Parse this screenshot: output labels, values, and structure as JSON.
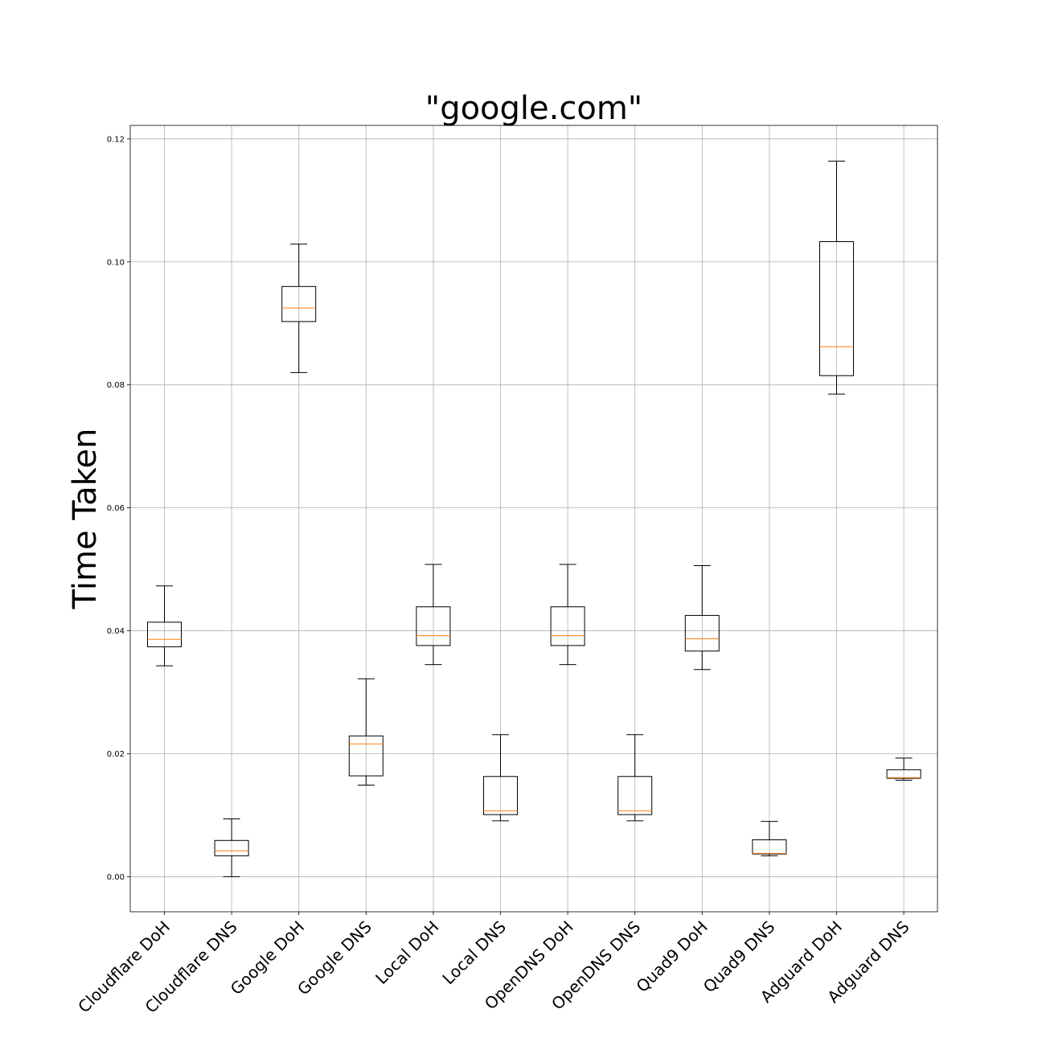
{
  "chart_data": {
    "type": "box",
    "title": "\"google.com\"",
    "xlabel": "",
    "ylabel": "Time Taken",
    "ylim": [
      -0.0057,
      0.1222
    ],
    "yticks": [
      "0.00",
      "0.02",
      "0.04",
      "0.06",
      "0.08",
      "0.10",
      "0.12"
    ],
    "ytick_values": [
      0.0,
      0.02,
      0.04,
      0.06,
      0.08,
      0.1,
      0.12
    ],
    "grid": true,
    "colors": {
      "box": "#000000",
      "median": "#ff7f0e",
      "grid": "#b0b0b0"
    },
    "categories": [
      "Cloudflare DoH",
      "Cloudflare DNS",
      "Google DoH",
      "Google DNS",
      "Local DoH",
      "Local DNS",
      "OpenDNS DoH",
      "OpenDNS DNS",
      "Quad9 DoH",
      "Quad9 DNS",
      "Adguard DoH",
      "Adguard DNS"
    ],
    "boxes": [
      {
        "whisker_low": 0.0343,
        "q1": 0.0374,
        "median": 0.0386,
        "q3": 0.0414,
        "whisker_high": 0.0473
      },
      {
        "whisker_low": 0.0,
        "q1": 0.0034,
        "median": 0.0042,
        "q3": 0.0059,
        "whisker_high": 0.0094
      },
      {
        "whisker_low": 0.082,
        "q1": 0.0903,
        "median": 0.0925,
        "q3": 0.096,
        "whisker_high": 0.1029
      },
      {
        "whisker_low": 0.0149,
        "q1": 0.0164,
        "median": 0.0216,
        "q3": 0.0229,
        "whisker_high": 0.0322
      },
      {
        "whisker_low": 0.0345,
        "q1": 0.0376,
        "median": 0.0392,
        "q3": 0.0439,
        "whisker_high": 0.0508
      },
      {
        "whisker_low": 0.0091,
        "q1": 0.0101,
        "median": 0.0107,
        "q3": 0.0163,
        "whisker_high": 0.0231
      },
      {
        "whisker_low": 0.0345,
        "q1": 0.0376,
        "median": 0.0392,
        "q3": 0.0439,
        "whisker_high": 0.0508
      },
      {
        "whisker_low": 0.0091,
        "q1": 0.0101,
        "median": 0.0107,
        "q3": 0.0163,
        "whisker_high": 0.0231
      },
      {
        "whisker_low": 0.0337,
        "q1": 0.0367,
        "median": 0.0387,
        "q3": 0.0425,
        "whisker_high": 0.0506
      },
      {
        "whisker_low": 0.0034,
        "q1": 0.0037,
        "median": 0.0038,
        "q3": 0.006,
        "whisker_high": 0.009
      },
      {
        "whisker_low": 0.0785,
        "q1": 0.0815,
        "median": 0.0862,
        "q3": 0.1033,
        "whisker_high": 0.1164
      },
      {
        "whisker_low": 0.0157,
        "q1": 0.016,
        "median": 0.0161,
        "q3": 0.0174,
        "whisker_high": 0.0193
      }
    ]
  }
}
